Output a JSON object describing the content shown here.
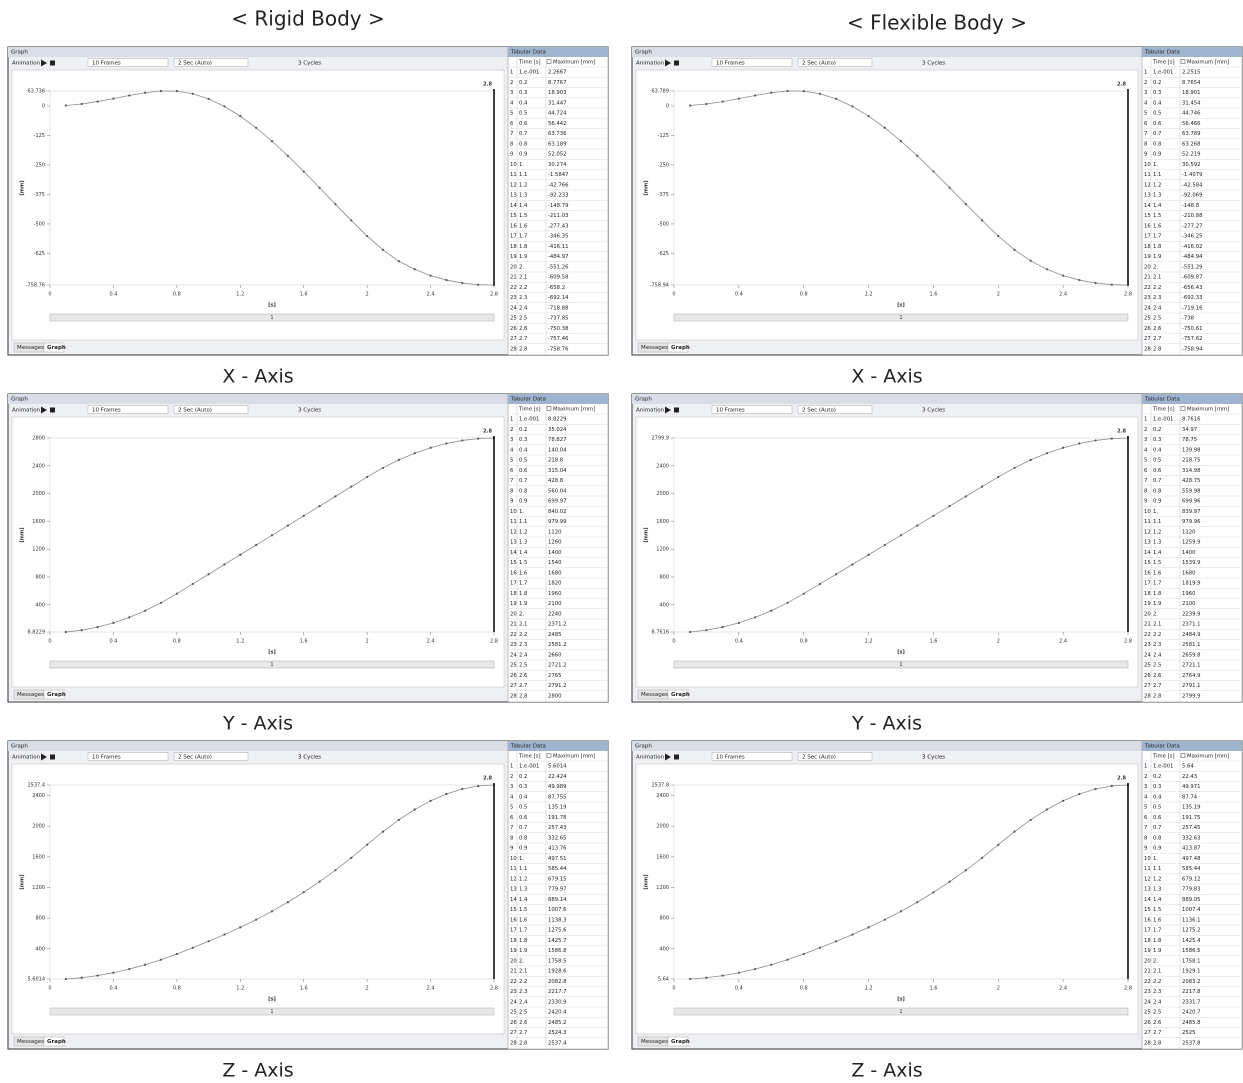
{
  "headings": [
    "< Rigid Body >",
    "< Flexible Body >"
  ],
  "ui": {
    "panel_title": "Graph",
    "animation": "Animation",
    "frames": "10 Frames",
    "duration": "2 Sec (Auto)",
    "cycles": "3 Cycles",
    "table_title": "Tabular Data",
    "time_header": "Time [s]",
    "tabs": [
      "Messages",
      "Graph"
    ],
    "scroll_label": "1"
  },
  "row_numbers": [
    1,
    2,
    3,
    4,
    5,
    6,
    7,
    8,
    9,
    10,
    11,
    12,
    13,
    14,
    15,
    16,
    17,
    18,
    19,
    20,
    21,
    22,
    23,
    24,
    25,
    26,
    27,
    28
  ],
  "chart_data": [
    {
      "type": "line",
      "caption": "X - Axis",
      "xlabel": "[s]",
      "ylabel": "[mm]",
      "time_marker": 2.8,
      "x": [
        0.1,
        0.2,
        0.3,
        0.4,
        0.5,
        0.6,
        0.7,
        0.8,
        0.9,
        1,
        1.1,
        1.2,
        1.3,
        1.4,
        1.5,
        1.6,
        1.7,
        1.8,
        1.9,
        2,
        2.1,
        2.2,
        2.3,
        2.4,
        2.5,
        2.6,
        2.7,
        2.8
      ],
      "x_labels": [
        "1.e-001",
        "0.2",
        "0.3",
        "0.4",
        "0.5",
        "0.6",
        "0.7",
        "0.8",
        "0.9",
        "1.",
        "1.1",
        "1.2",
        "1.3",
        "1.4",
        "1.5",
        "1.6",
        "1.7",
        "1.8",
        "1.9",
        "2.",
        "2.1",
        "2.2",
        "2.3",
        "2.4",
        "2.5",
        "2.6",
        "2.7",
        "2.8"
      ],
      "series": [
        {
          "name": "Maximum [mm]",
          "color": "#8c8c8c",
          "values": [
            2.2667,
            8.7767,
            18.903,
            31.447,
            44.724,
            56.442,
            63.736,
            63.189,
            52.052,
            30.274,
            -1.5847,
            -42.766,
            -92.233,
            -148.79,
            -211.03,
            -277.43,
            -346.35,
            -416.11,
            -484.97,
            -551.26,
            -609.58,
            -658.2,
            -692.14,
            -718.88,
            -737.85,
            -750.38,
            -757.46,
            -758.76
          ]
        }
      ],
      "xlim": [
        0,
        2.8
      ],
      "xticks": [
        0,
        0.4,
        0.8,
        1.2,
        1.6,
        2,
        2.4,
        2.8
      ],
      "ylim": [
        -758.76,
        63.736
      ],
      "yticks": [
        -758.76,
        -625,
        -500,
        -375,
        -250,
        -125,
        0,
        63.736
      ]
    },
    {
      "type": "line",
      "caption": "X - Axis",
      "xlabel": "[s]",
      "ylabel": "[mm]",
      "time_marker": 2.8,
      "x": [
        0.1,
        0.2,
        0.3,
        0.4,
        0.5,
        0.6,
        0.7,
        0.8,
        0.9,
        1,
        1.1,
        1.2,
        1.3,
        1.4,
        1.5,
        1.6,
        1.7,
        1.8,
        1.9,
        2,
        2.1,
        2.2,
        2.3,
        2.4,
        2.5,
        2.6,
        2.7,
        2.8
      ],
      "x_labels": [
        "1.e-001",
        "0.2",
        "0.3",
        "0.4",
        "0.5",
        "0.6",
        "0.7",
        "0.8",
        "0.9",
        "1.",
        "1.1",
        "1.2",
        "1.3",
        "1.4",
        "1.5",
        "1.6",
        "1.7",
        "1.8",
        "1.9",
        "2.",
        "2.1",
        "2.2",
        "2.3",
        "2.4",
        "2.5",
        "2.6",
        "2.7",
        "2.8"
      ],
      "series": [
        {
          "name": "Maximum [mm]",
          "color": "#8c8c8c",
          "values": [
            2.2515,
            8.7654,
            18.901,
            31.454,
            44.746,
            56.466,
            63.789,
            63.268,
            52.219,
            30.592,
            -1.4079,
            -42.584,
            -92.069,
            -148.8,
            -210.88,
            -277.27,
            -346.25,
            -416.02,
            -484.94,
            -551.29,
            -609.87,
            -656.43,
            -692.33,
            -719.16,
            -738,
            -750.61,
            -757.62,
            -758.94
          ]
        }
      ],
      "xlim": [
        0,
        2.8
      ],
      "xticks": [
        0,
        0.4,
        0.8,
        1.2,
        1.6,
        2,
        2.4,
        2.8
      ],
      "ylim": [
        -758.94,
        63.789
      ],
      "yticks": [
        -758.94,
        -625,
        -500,
        -375,
        -250,
        -125,
        0,
        63.789
      ]
    },
    {
      "type": "line",
      "caption": "Y - Axis",
      "xlabel": "[s]",
      "ylabel": "[mm]",
      "time_marker": 2.8,
      "x": [
        0.1,
        0.2,
        0.3,
        0.4,
        0.5,
        0.6,
        0.7,
        0.8,
        0.9,
        1,
        1.1,
        1.2,
        1.3,
        1.4,
        1.5,
        1.6,
        1.7,
        1.8,
        1.9,
        2,
        2.1,
        2.2,
        2.3,
        2.4,
        2.5,
        2.6,
        2.7,
        2.8
      ],
      "x_labels": [
        "1.e-001",
        "0.2",
        "0.3",
        "0.4",
        "0.5",
        "0.6",
        "0.7",
        "0.8",
        "0.9",
        "1.",
        "1.1",
        "1.2",
        "1.3",
        "1.4",
        "1.5",
        "1.6",
        "1.7",
        "1.8",
        "1.9",
        "2.",
        "2.1",
        "2.2",
        "2.3",
        "2.4",
        "2.5",
        "2.6",
        "2.7",
        "2.8"
      ],
      "series": [
        {
          "name": "Maximum [mm]",
          "color": "#8c8c8c",
          "values": [
            8.8229,
            35.024,
            78.827,
            140.04,
            218.8,
            315.04,
            428.8,
            560.04,
            699.97,
            840.02,
            979.99,
            1120,
            1260,
            1400,
            1540,
            1680,
            1820,
            1960,
            2100,
            2240,
            2371.2,
            2485,
            2581.2,
            2660,
            2721.2,
            2765,
            2791.2,
            2800
          ]
        }
      ],
      "xlim": [
        0,
        2.8
      ],
      "xticks": [
        0,
        0.4,
        0.8,
        1.2,
        1.6,
        2,
        2.4,
        2.8
      ],
      "ylim": [
        8.8229,
        2800
      ],
      "yticks": [
        8.8229,
        400,
        800,
        1200,
        1600,
        2000,
        2400,
        2800
      ]
    },
    {
      "type": "line",
      "caption": "Y - Axis",
      "xlabel": "[s]",
      "ylabel": "[mm]",
      "time_marker": 2.8,
      "x": [
        0.1,
        0.2,
        0.3,
        0.4,
        0.5,
        0.6,
        0.7,
        0.8,
        0.9,
        1,
        1.1,
        1.2,
        1.3,
        1.4,
        1.5,
        1.6,
        1.7,
        1.8,
        1.9,
        2,
        2.1,
        2.2,
        2.3,
        2.4,
        2.5,
        2.6,
        2.7,
        2.8
      ],
      "x_labels": [
        "1.e-001",
        "0.2",
        "0.3",
        "0.4",
        "0.5",
        "0.6",
        "0.7",
        "0.8",
        "0.9",
        "1.",
        "1.1",
        "1.2",
        "1.3",
        "1.4",
        "1.5",
        "1.6",
        "1.7",
        "1.8",
        "1.9",
        "2.",
        "2.1",
        "2.2",
        "2.3",
        "2.4",
        "2.5",
        "2.6",
        "2.7",
        "2.8"
      ],
      "series": [
        {
          "name": "Maximum [mm]",
          "color": "#8c8c8c",
          "values": [
            8.7616,
            34.97,
            78.75,
            139.98,
            218.75,
            314.98,
            428.75,
            559.98,
            699.96,
            839.97,
            979.96,
            1120,
            1259.9,
            1400,
            1539.9,
            1680,
            1819.9,
            1960,
            2100,
            2239.9,
            2371.1,
            2484.9,
            2581.1,
            2659.8,
            2721.1,
            2764.9,
            2791.1,
            2799.9
          ]
        }
      ],
      "xlim": [
        0,
        2.8
      ],
      "xticks": [
        0,
        0.4,
        0.8,
        1.2,
        1.6,
        2,
        2.4,
        2.8
      ],
      "ylim": [
        8.7616,
        2799.9
      ],
      "yticks": [
        8.7616,
        400,
        800,
        1200,
        1600,
        2000,
        2400,
        2799.9
      ]
    },
    {
      "type": "line",
      "caption": "Z - Axis",
      "xlabel": "[s]",
      "ylabel": "[mm]",
      "time_marker": 2.8,
      "x": [
        0.1,
        0.2,
        0.3,
        0.4,
        0.5,
        0.6,
        0.7,
        0.8,
        0.9,
        1,
        1.1,
        1.2,
        1.3,
        1.4,
        1.5,
        1.6,
        1.7,
        1.8,
        1.9,
        2,
        2.1,
        2.2,
        2.3,
        2.4,
        2.5,
        2.6,
        2.7,
        2.8
      ],
      "x_labels": [
        "1.e-001",
        "0.2",
        "0.3",
        "0.4",
        "0.5",
        "0.6",
        "0.7",
        "0.8",
        "0.9",
        "1.",
        "1.1",
        "1.2",
        "1.3",
        "1.4",
        "1.5",
        "1.6",
        "1.7",
        "1.8",
        "1.9",
        "2.",
        "2.1",
        "2.2",
        "2.3",
        "2.4",
        "2.5",
        "2.6",
        "2.7",
        "2.8"
      ],
      "series": [
        {
          "name": "Maximum [mm]",
          "color": "#8c8c8c",
          "values": [
            5.6014,
            22.424,
            49.989,
            87.755,
            135.19,
            191.78,
            257.43,
            332.65,
            413.76,
            497.51,
            585.44,
            679.15,
            779.97,
            889.14,
            1007.6,
            1138.3,
            1275.6,
            1425.7,
            1586.8,
            1758.5,
            1928.6,
            2082.8,
            2217.7,
            2330.9,
            2420.4,
            2485.2,
            2524.3,
            2537.4
          ]
        }
      ],
      "xlim": [
        0,
        2.8
      ],
      "xticks": [
        0,
        0.4,
        0.8,
        1.2,
        1.6,
        2,
        2.4,
        2.8
      ],
      "ylim": [
        5.6014,
        2537.4
      ],
      "yticks": [
        5.6014,
        400,
        800,
        1200,
        1600,
        2000,
        2400,
        2537.4
      ]
    },
    {
      "type": "line",
      "caption": "Z - Axis",
      "xlabel": "[s]",
      "ylabel": "[mm]",
      "time_marker": 2.8,
      "x": [
        0.1,
        0.2,
        0.3,
        0.4,
        0.5,
        0.6,
        0.7,
        0.8,
        0.9,
        1,
        1.1,
        1.2,
        1.3,
        1.4,
        1.5,
        1.6,
        1.7,
        1.8,
        1.9,
        2,
        2.1,
        2.2,
        2.3,
        2.4,
        2.5,
        2.6,
        2.7,
        2.8
      ],
      "x_labels": [
        "1.e-001",
        "0.2",
        "0.3",
        "0.4",
        "0.5",
        "0.6",
        "0.7",
        "0.8",
        "0.9",
        "1.",
        "1.1",
        "1.2",
        "1.3",
        "1.4",
        "1.5",
        "1.6",
        "1.7",
        "1.8",
        "1.9",
        "2.",
        "2.1",
        "2.2",
        "2.3",
        "2.4",
        "2.5",
        "2.6",
        "2.7",
        "2.8"
      ],
      "series": [
        {
          "name": "Maximum [mm]",
          "color": "#8c8c8c",
          "values": [
            5.64,
            22.43,
            49.971,
            87.74,
            135.19,
            191.75,
            257.45,
            332.63,
            413.87,
            497.48,
            585.44,
            679.12,
            779.83,
            889.05,
            1007.4,
            1136.1,
            1275.2,
            1425.4,
            1586.5,
            1758.1,
            1929.1,
            2083.2,
            2217.8,
            2331.7,
            2420.7,
            2485.8,
            2525,
            2537.8
          ]
        }
      ],
      "xlim": [
        0,
        2.8
      ],
      "xticks": [
        0,
        0.4,
        0.8,
        1.2,
        1.6,
        2,
        2.4,
        2.8
      ],
      "ylim": [
        5.64,
        2537.8
      ],
      "yticks": [
        5.64,
        400,
        800,
        1200,
        1600,
        2000,
        2400,
        2537.8
      ]
    }
  ]
}
